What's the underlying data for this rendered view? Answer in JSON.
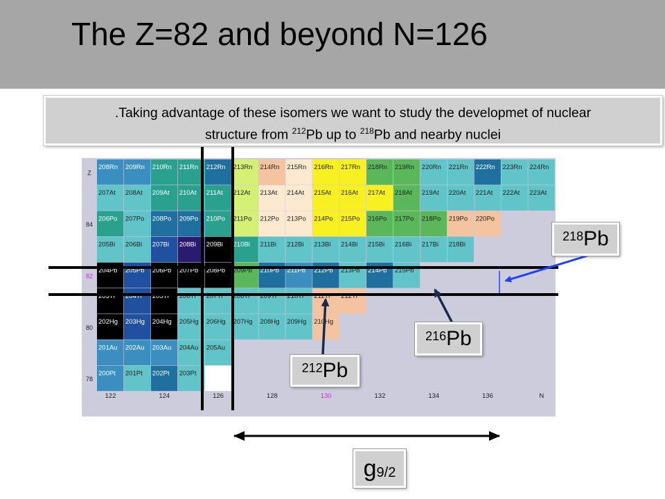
{
  "slide_title": "The Z=82 and beyond N=126",
  "callout": {
    "line1": ".Taking advantage of these isomers we want to study the developmet of nuclear",
    "line2_prefix": "structure from ",
    "line2_sup1": "212",
    "line2_mid": "Pb up to ",
    "line2_sup2": "218",
    "line2_suffix": "Pb and nearby nuclei"
  },
  "labels": {
    "pb218": {
      "mass": "218",
      "element": "Pb"
    },
    "pb216": {
      "mass": "216",
      "element": "Pb"
    },
    "pb212": {
      "mass": "212",
      "element": "Pb"
    },
    "g92": {
      "main": "g",
      "sub": "9/2"
    }
  },
  "nuclide_chart": {
    "z_axis": [
      "Z",
      "",
      "84",
      "",
      "82",
      "",
      "80",
      "",
      "78"
    ],
    "z_highlight_color": "#e020e0",
    "n_axis": [
      "122",
      "124",
      "126",
      "128",
      "130",
      "132",
      "134",
      "136",
      "N"
    ],
    "n_highlight_color": "#e020e0",
    "rows": [
      [
        [
          "208Rn",
          "#3a8fc0"
        ],
        [
          "209Rn",
          "#3a8fc0"
        ],
        [
          "210Rn",
          "#2aa08e"
        ],
        [
          "211Rn",
          "#2aa08e"
        ],
        [
          "212Rn",
          "#1f6f9f"
        ],
        [
          "213Rn",
          "#d4f075"
        ],
        [
          "214Rn",
          "#f4c4a0"
        ],
        [
          "215Rn",
          "#fde8d0"
        ],
        [
          "216Rn",
          "#f8f020"
        ],
        [
          "217Rn",
          "#f8f020"
        ],
        [
          "218Rn",
          "#5ab85a"
        ],
        [
          "219Rn",
          "#5ab85a"
        ],
        [
          "220Rn",
          "#60c4c8"
        ],
        [
          "221Rn",
          "#60c4c8"
        ],
        [
          "222Rn",
          "#1f6f9f"
        ],
        [
          "223Rn",
          "#60c4c8"
        ],
        [
          "224Rn",
          "#60c4c8"
        ]
      ],
      [
        [
          "207At",
          "#60c4c8"
        ],
        [
          "208At",
          "#60c4c8"
        ],
        [
          "209At",
          "#2aa08e"
        ],
        [
          "210At",
          "#2aa08e"
        ],
        [
          "211At",
          "#2aa08e"
        ],
        [
          "212At",
          "#d4f075"
        ],
        [
          "213At",
          "#fde8d0"
        ],
        [
          "214At",
          "#fde8d0"
        ],
        [
          "215At",
          "#f8f020"
        ],
        [
          "216At",
          "#f8f020"
        ],
        [
          "217At",
          "#f8f020"
        ],
        [
          "218At",
          "#5ab85a"
        ],
        [
          "219At",
          "#60c4c8"
        ],
        [
          "220At",
          "#60c4c8"
        ],
        [
          "221At",
          "#60c4c8"
        ],
        [
          "222At",
          "#60c4c8"
        ],
        [
          "223At",
          "#60c4c8"
        ]
      ],
      [
        [
          "206Po",
          "#2aa08e"
        ],
        [
          "207Po",
          "#60c4c8"
        ],
        [
          "208Po",
          "#1f6f9f"
        ],
        [
          "209Po",
          "#1f6f9f"
        ],
        [
          "210Po",
          "#2aa08e"
        ],
        [
          "211Po",
          "#d4f075"
        ],
        [
          "212Po",
          "#fde8d0"
        ],
        [
          "213Po",
          "#fde8d0"
        ],
        [
          "214Po",
          "#f8f020"
        ],
        [
          "215Po",
          "#f8f020"
        ],
        [
          "216Po",
          "#5ab85a"
        ],
        [
          "217Po",
          "#5ab85a"
        ],
        [
          "218Po",
          "#5ab85a"
        ],
        [
          "219Po",
          "#f4c4a0"
        ],
        [
          "220Po",
          "#f4c4a0"
        ]
      ],
      [
        [
          "205Bi",
          "#60c4c8"
        ],
        [
          "206Bi",
          "#60c4c8"
        ],
        [
          "207Bi",
          "#2050a0"
        ],
        [
          "208Bi",
          "#2a1a70"
        ],
        [
          "209Bi",
          "#000000"
        ],
        [
          "210Bi",
          "#2aa08e"
        ],
        [
          "211Bi",
          "#60c4c8"
        ],
        [
          "212Bi",
          "#60c4c8"
        ],
        [
          "213Bi",
          "#60c4c8"
        ],
        [
          "214Bi",
          "#60c4c8"
        ],
        [
          "215Bi",
          "#60c4c8"
        ],
        [
          "216Bi",
          "#60c4c8"
        ],
        [
          "217Bi",
          "#60c4c8"
        ],
        [
          "218Bi",
          "#60c4c8"
        ]
      ],
      [
        [
          "204Pb",
          "#000000"
        ],
        [
          "205Pb",
          "#2050a0"
        ],
        [
          "206Pb",
          "#000000"
        ],
        [
          "207Pb",
          "#000000"
        ],
        [
          "208Pb",
          "#000000"
        ],
        [
          "209Pb",
          "#5ab85a"
        ],
        [
          "210Pb",
          "#1f6f9f"
        ],
        [
          "211Pb",
          "#3a8fc0"
        ],
        [
          "212Pb",
          "#1f6f9f"
        ],
        [
          "213Pb",
          "#60c4c8"
        ],
        [
          "214Pb",
          "#1f6f9f"
        ],
        [
          "215Pb",
          "#60c4c8"
        ]
      ],
      [
        [
          "203Tl",
          "#000000"
        ],
        [
          "204Tl",
          "#2050a0"
        ],
        [
          "205Tl",
          "#000000"
        ],
        [
          "206Tl",
          "#60c4c8"
        ],
        [
          "207Tl",
          "#60c4c8"
        ],
        [
          "208Tl",
          "#60c4c8"
        ],
        [
          "209Tl",
          "#60c4c8"
        ],
        [
          "210Tl",
          "#60c4c8"
        ],
        [
          "211Tl",
          "#f4c4a0"
        ],
        [
          "212Tl",
          "#f4c4a0"
        ]
      ],
      [
        [
          "202Hg",
          "#000000"
        ],
        [
          "203Hg",
          "#2050a0"
        ],
        [
          "204Hg",
          "#000000"
        ],
        [
          "205Hg",
          "#60c4c8"
        ],
        [
          "206Hg",
          "#60c4c8"
        ],
        [
          "207Hg",
          "#60c4c8"
        ],
        [
          "208Hg",
          "#60c4c8"
        ],
        [
          "209Hg",
          "#60c4c8"
        ],
        [
          "210Hg",
          "#f4c4a0"
        ]
      ],
      [
        [
          "201Au",
          "#3a8fc0"
        ],
        [
          "202Au",
          "#3a8fc0"
        ],
        [
          "203Au",
          "#3a8fc0"
        ],
        [
          "204Au",
          "#60c4c8"
        ],
        [
          "205Au",
          "#60c4c8"
        ]
      ],
      [
        [
          "200Pt",
          "#3a8fc0"
        ],
        [
          "201Pt",
          "#60c4c8"
        ],
        [
          "202Pt",
          "#1f6f9f"
        ],
        [
          "203Pt",
          "#60c4c8"
        ]
      ]
    ]
  }
}
